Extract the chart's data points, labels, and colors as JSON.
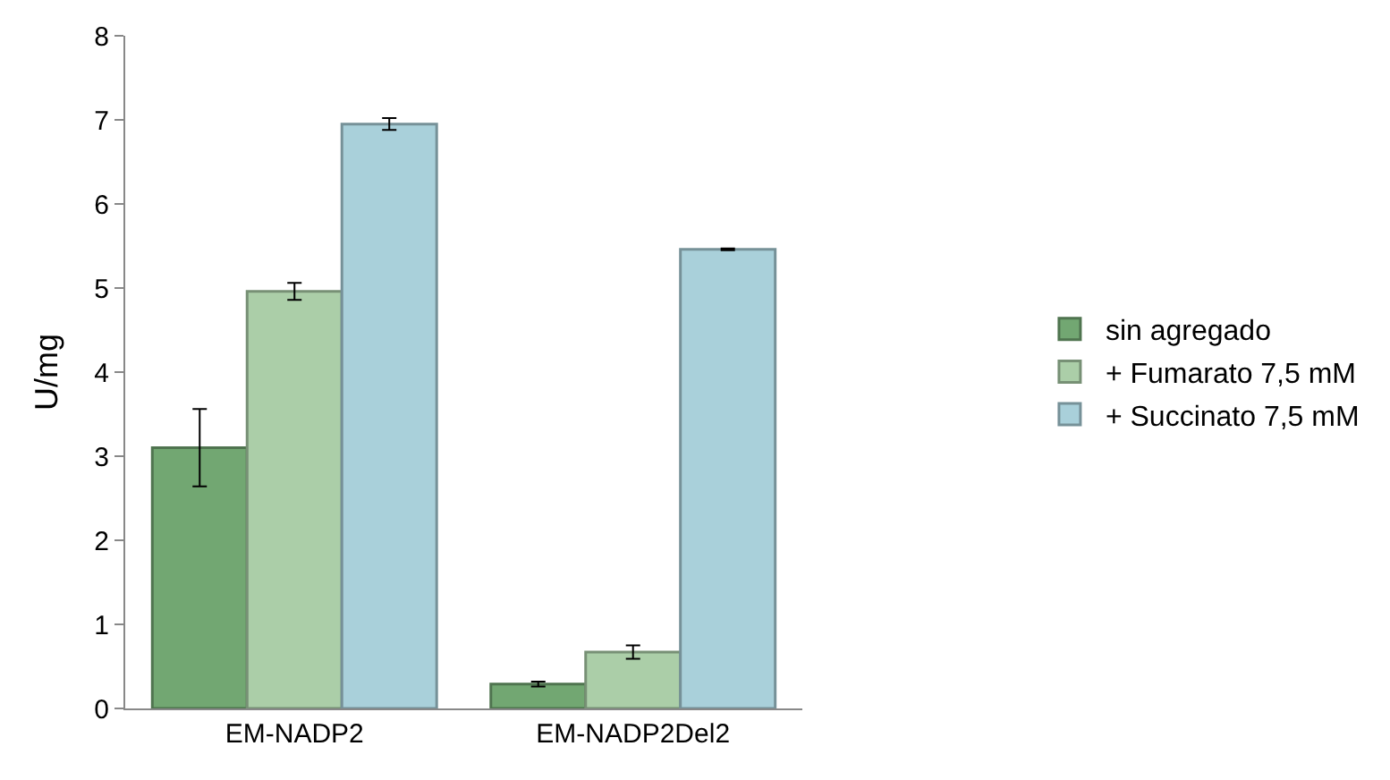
{
  "chart_data": {
    "type": "bar",
    "ylabel": "U/mg",
    "categories": [
      "EM-NADP2",
      "EM-NADP2Del2"
    ],
    "series": [
      {
        "name": "sin agregado",
        "color": "#72a772",
        "values": [
          3.1,
          0.29
        ],
        "errors": [
          0.46,
          0.03
        ]
      },
      {
        "name": "+ Fumarato 7,5 mM",
        "color": "#abcea8",
        "values": [
          4.96,
          0.67
        ],
        "errors": [
          0.1,
          0.08
        ]
      },
      {
        "name": "+ Succinato 7,5 mM",
        "color": "#a9d0da",
        "values": [
          6.95,
          5.46
        ],
        "errors": [
          0.07,
          0.01
        ]
      }
    ],
    "ylim": [
      0,
      8
    ],
    "yticks": [
      0,
      1,
      2,
      3,
      4,
      5,
      6,
      7,
      8
    ],
    "legend": "right"
  }
}
